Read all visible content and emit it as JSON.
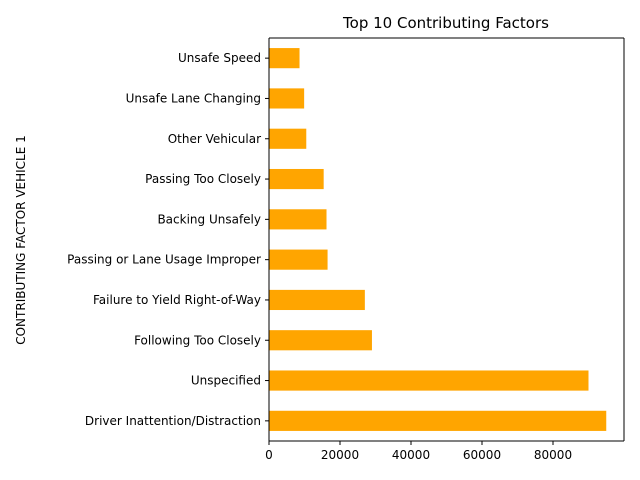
{
  "chart_data": {
    "type": "bar",
    "orientation": "horizontal",
    "title": "Top 10 Contributing Factors",
    "xlabel": "",
    "ylabel": "CONTRIBUTING FACTOR VEHICLE 1",
    "categories": [
      "Driver Inattention/Distraction",
      "Unspecified",
      "Following Too Closely",
      "Failure to Yield Right-of-Way",
      "Passing or Lane Usage Improper",
      "Backing Unsafely",
      "Passing Too Closely",
      "Other Vehicular",
      "Unsafe Lane Changing",
      "Unsafe Speed"
    ],
    "values": [
      95000,
      90000,
      29000,
      27000,
      16500,
      16200,
      15400,
      10500,
      9900,
      8600
    ],
    "xlim": [
      0,
      100000
    ],
    "xticks": [
      0,
      20000,
      40000,
      60000,
      80000
    ],
    "xtick_labels": [
      "0",
      "20000",
      "40000",
      "60000",
      "80000"
    ],
    "bar_color": "#ffa500",
    "grid": false,
    "legend": "none"
  }
}
